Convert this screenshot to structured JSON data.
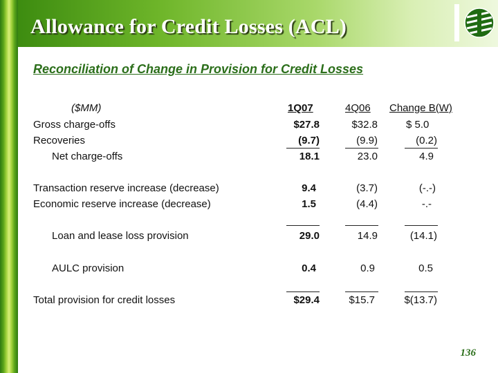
{
  "header": {
    "title": "Allowance for Credit Losses (ACL)"
  },
  "subtitle": "Reconciliation of Change in Provision for Credit Losses",
  "table": {
    "unit_label": "($MM)",
    "columns": [
      "1Q07",
      "4Q06",
      "Change B(W)"
    ],
    "rows": [
      {
        "label": "Gross charge-offs",
        "values": [
          "$27.8",
          "$32.8",
          "$  5.0"
        ]
      },
      {
        "label": "Recoveries",
        "values": [
          "(9.7)",
          "(9.9)",
          "(0.2)"
        ]
      },
      {
        "label": "Net charge-offs",
        "values": [
          "18.1",
          "23.0",
          "4.9"
        ]
      },
      {
        "label": "Transaction reserve increase (decrease)",
        "values": [
          "9.4",
          "(3.7)",
          "(-.-)"
        ]
      },
      {
        "label": "Economic reserve increase (decrease)",
        "values": [
          "1.5",
          "(4.4)",
          "-.-"
        ]
      },
      {
        "label": "Loan and lease loss provision",
        "values": [
          "29.0",
          "14.9",
          "(14.1)"
        ]
      },
      {
        "label": "AULC provision",
        "values": [
          "0.4",
          "0.9",
          "0.5"
        ]
      },
      {
        "label": "Total provision for credit losses",
        "values": [
          "$29.4",
          "$15.7",
          "$(13.7)"
        ]
      }
    ]
  },
  "page_number": "136"
}
